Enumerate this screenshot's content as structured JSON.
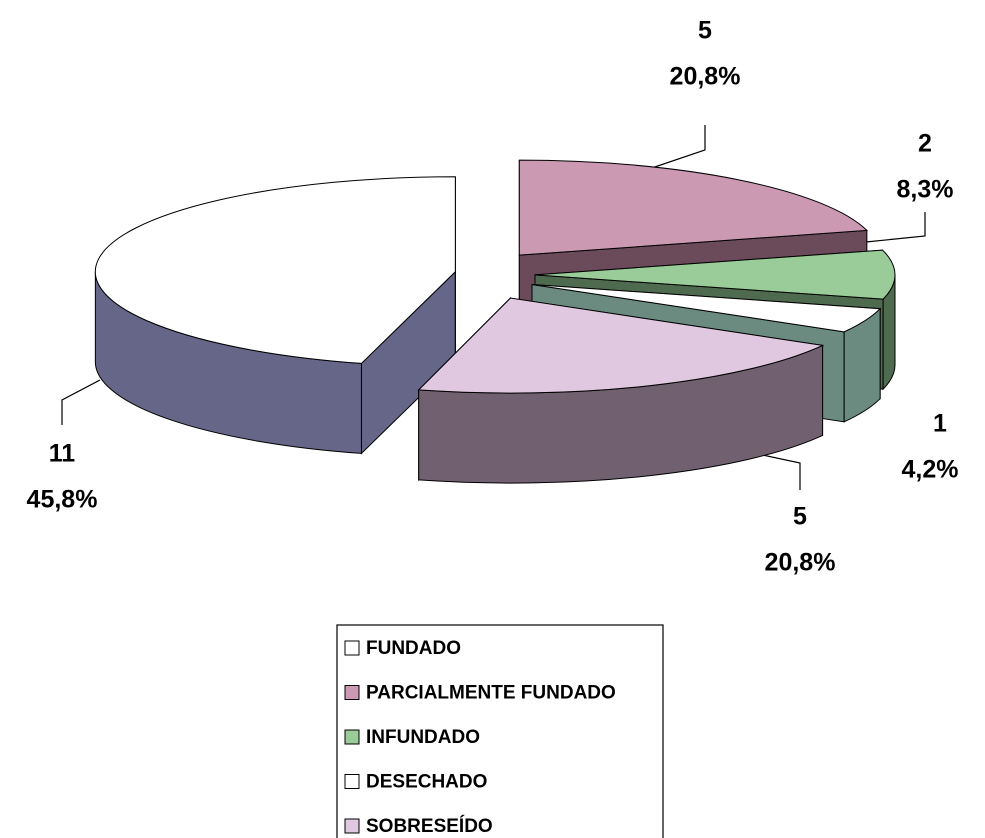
{
  "chart_data": {
    "type": "pie3d",
    "categories": [
      "FUNDADO",
      "PARCIALMENTE FUNDADO",
      "INFUNDADO",
      "DESECHADO",
      "SOBRESEÍDO"
    ],
    "values": [
      11,
      5,
      2,
      1,
      5
    ],
    "percents": [
      45.8,
      20.8,
      8.3,
      4.2,
      20.8
    ],
    "percent_labels": [
      "45,8%",
      "20,8%",
      "8,3%",
      "4,2%",
      "20,8%"
    ],
    "colors": [
      "#ffffff",
      "#cc99b3",
      "#99cc99",
      "#ffffff",
      "#e0c8e0"
    ],
    "side_colors": [
      "#666688",
      "#6b4a5a",
      "#4f6b4f",
      "#6b8a80",
      "#706070"
    ],
    "legend": "bottom"
  }
}
